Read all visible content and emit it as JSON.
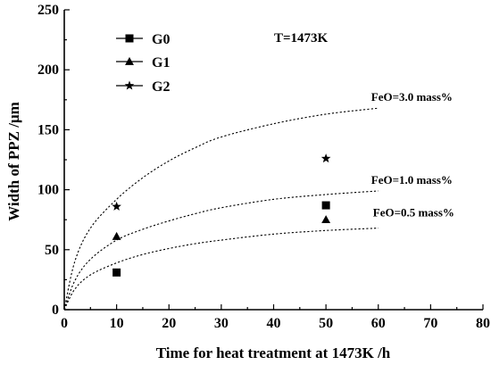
{
  "chart_data": {
    "type": "scatter",
    "xlabel": "Time for heat treatment at 1473K /h",
    "ylabel": "Width of PPZ /μm",
    "xlim": [
      0,
      80
    ],
    "ylim": [
      0,
      250
    ],
    "xticks": [
      0,
      10,
      20,
      30,
      40,
      50,
      60,
      70,
      80
    ],
    "yticks": [
      0,
      50,
      100,
      150,
      200,
      250
    ],
    "annotation": "T=1473K",
    "legend_position": "top-left",
    "series": [
      {
        "name": "G0",
        "marker": "square",
        "x": [
          10,
          50
        ],
        "y": [
          31,
          87
        ]
      },
      {
        "name": "G1",
        "marker": "triangle",
        "x": [
          10,
          50
        ],
        "y": [
          61,
          75
        ]
      },
      {
        "name": "G2",
        "marker": "star",
        "x": [
          10,
          50
        ],
        "y": [
          86,
          126
        ]
      }
    ],
    "curves": [
      {
        "label": "FeO=3.0 mass%",
        "style": "dotted",
        "x": [
          0,
          2,
          5,
          10,
          15,
          20,
          25,
          30,
          40,
          50,
          60
        ],
        "y": [
          0,
          40,
          68,
          92,
          110,
          124,
          135,
          144,
          155,
          163,
          168
        ]
      },
      {
        "label": "FeO=1.0 mass%",
        "style": "dotted",
        "x": [
          0,
          2,
          5,
          10,
          15,
          20,
          25,
          30,
          40,
          50,
          60
        ],
        "y": [
          0,
          24,
          42,
          58,
          67,
          74,
          80,
          85,
          92,
          96,
          99
        ]
      },
      {
        "label": "FeO=0.5 mass%",
        "style": "dotted",
        "x": [
          0,
          2,
          5,
          10,
          15,
          20,
          25,
          30,
          40,
          50,
          60
        ],
        "y": [
          0,
          17,
          29,
          39,
          46,
          51,
          55,
          58,
          63,
          66,
          68
        ]
      }
    ]
  }
}
